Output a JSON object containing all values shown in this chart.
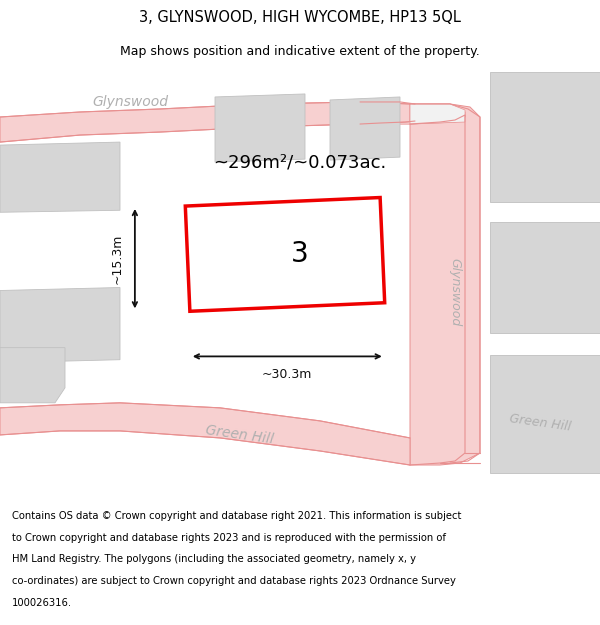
{
  "title": "3, GLYNSWOOD, HIGH WYCOMBE, HP13 5QL",
  "subtitle": "Map shows position and indicative extent of the property.",
  "footer_lines": [
    "Contains OS data © Crown copyright and database right 2021. This information is subject",
    "to Crown copyright and database rights 2023 and is reproduced with the permission of",
    "HM Land Registry. The polygons (including the associated geometry, namely x, y",
    "co-ordinates) are subject to Crown copyright and database rights 2023 Ordnance Survey",
    "100026316."
  ],
  "area_text": "~296m²/~0.073ac.",
  "width_text": "~30.3m",
  "height_text": "~15.3m",
  "property_label": "3",
  "bg_color": "#ffffff",
  "map_bg": "#f2f2f2",
  "road_fill": "#f7d0d0",
  "road_line": "#e89090",
  "building_fill": "#d6d6d6",
  "building_edge": "#c0c0c0",
  "property_fill": "#ffffff",
  "property_edge": "#ee0000",
  "dim_color": "#111111",
  "road_label_color": "#b0b0b0",
  "title_fontsize": 10.5,
  "subtitle_fontsize": 9,
  "area_fontsize": 13,
  "dim_fontsize": 9,
  "prop_label_fontsize": 20,
  "road_label_fontsize": 10,
  "footer_fontsize": 7.2
}
